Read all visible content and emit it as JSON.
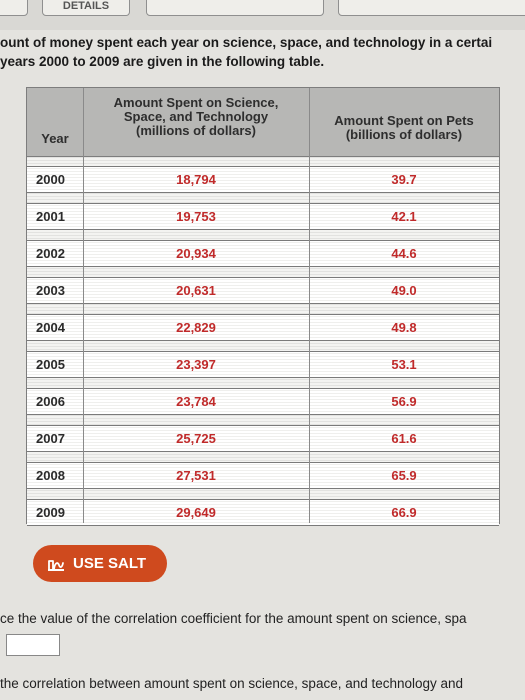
{
  "header": {
    "tabs": [
      {
        "label": ""
      },
      {
        "label": "DETAILS"
      },
      {
        "label": ""
      },
      {
        "label": ""
      }
    ]
  },
  "intro": {
    "line1": "ount of money spent each year on science, space, and technology in a certai",
    "line2": "years 2000 to 2009 are given in the following table."
  },
  "table": {
    "headers": {
      "year": "Year",
      "science": "Amount Spent on Science,\nSpace, and Technology\n(millions of dollars)",
      "pets": "Amount Spent on Pets\n(billions of dollars)"
    },
    "rows": [
      {
        "year": "2000",
        "science": "18,794",
        "pets": "39.7"
      },
      {
        "year": "2001",
        "science": "19,753",
        "pets": "42.1"
      },
      {
        "year": "2002",
        "science": "20,934",
        "pets": "44.6"
      },
      {
        "year": "2003",
        "science": "20,631",
        "pets": "49.0"
      },
      {
        "year": "2004",
        "science": "22,829",
        "pets": "49.8"
      },
      {
        "year": "2005",
        "science": "23,397",
        "pets": "53.1"
      },
      {
        "year": "2006",
        "science": "23,784",
        "pets": "56.9"
      },
      {
        "year": "2007",
        "science": "25,725",
        "pets": "61.6"
      },
      {
        "year": "2008",
        "science": "27,531",
        "pets": "65.9"
      },
      {
        "year": "2009",
        "science": "29,649",
        "pets": "66.9"
      }
    ]
  },
  "salt_button": {
    "label": "USE SALT",
    "icon": "salt-chart-icon",
    "color": "#cf4a1e"
  },
  "question1": {
    "text": "ce the value of the correlation coefficient for the amount spent on science, spa"
  },
  "answer1": {
    "value": ""
  },
  "question2": {
    "text": "the correlation between amount spent on science, space, and technology and"
  },
  "colors": {
    "value_text": "#c02a2a",
    "header_bg": "#b7b7b5"
  }
}
